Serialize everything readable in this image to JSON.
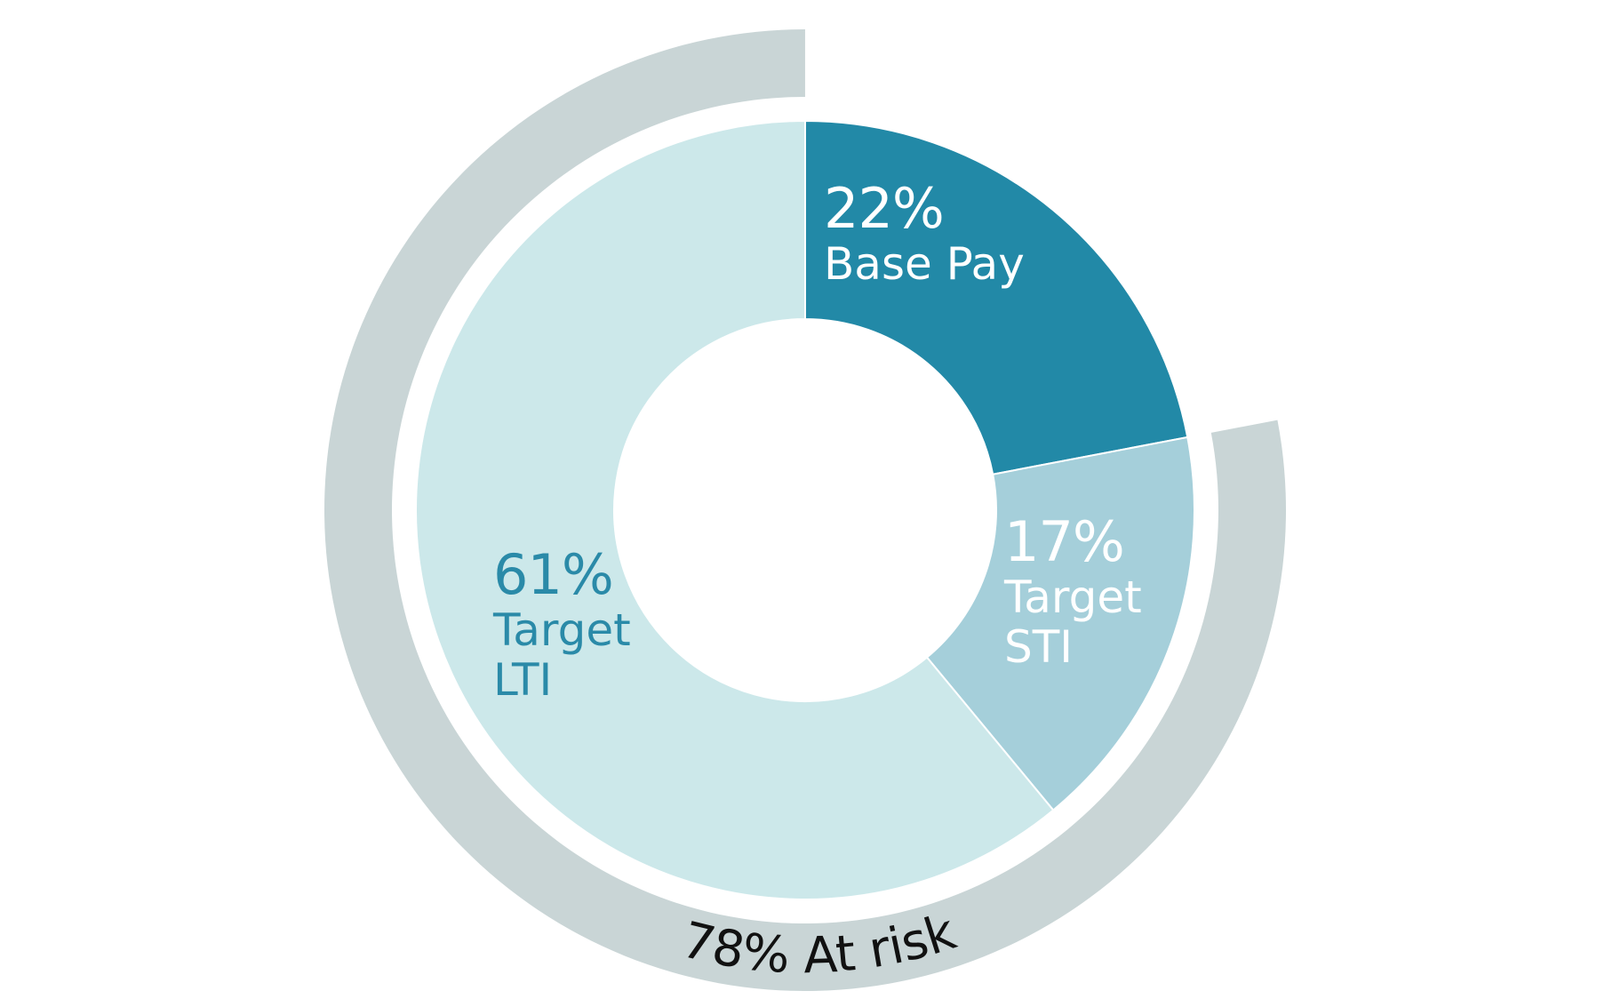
{
  "chart_data": {
    "type": "pie",
    "categories": [
      "Base Pay",
      "Target STI",
      "Target LTI"
    ],
    "values": [
      22,
      17,
      61
    ],
    "value_labels": [
      "22%",
      "17%",
      "61%"
    ],
    "colors": [
      "#2289a7",
      "#a5cfda",
      "#cce8ea"
    ],
    "label_colors": [
      "#ffffff",
      "#ffffff",
      "#2a8aa8"
    ],
    "at_risk": {
      "value": 78,
      "label": "78% At risk",
      "color": "#c9d5d6"
    }
  }
}
